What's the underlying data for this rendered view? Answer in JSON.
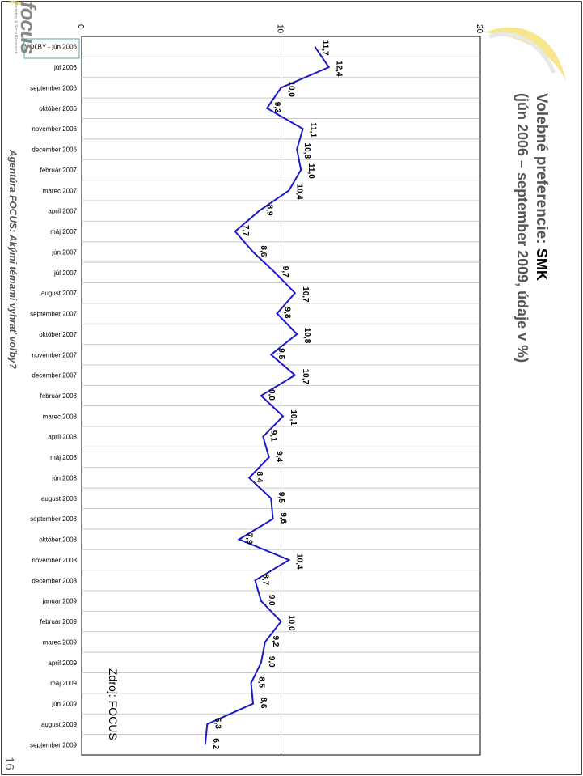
{
  "slide": {
    "title_line1_prefix": "Volebné preferencie: ",
    "title_line1_party": "SMK",
    "title_line2": "(jún 2006 – september 2009, údaje v %)",
    "side_caption": "Agentúra FOCUS: Akými témami vyhrať voľby?",
    "source": "Zdroj: FOCUS",
    "page_number": "16",
    "logo_text": "focus",
    "logo_tagline": "Marketing & Social Research"
  },
  "colors": {
    "line": "#1a1acc",
    "grid": "#c8c8c8",
    "accent_swoosh": "#f4e27a",
    "title": "#555555"
  },
  "chart_data": {
    "type": "line",
    "orientation": "rotated-vertical",
    "categories": [
      "VOĽBY - jún 2006",
      "júl 2006",
      "september 2006",
      "október 2006",
      "november 2006",
      "december 2006",
      "február 2007",
      "marec 2007",
      "apríl 2007",
      "máj 2007",
      "jún 2007",
      "júl 2007",
      "august 2007",
      "september 2007",
      "október 2007",
      "november 2007",
      "december 2007",
      "február 2008",
      "marec 2008",
      "apríl 2008",
      "máj 2008",
      "jún 2008",
      "august 2008",
      "september 2008",
      "október 2008",
      "november 2008",
      "december 2008",
      "január 2009",
      "február 2009",
      "marec 2009",
      "apríl 2009",
      "máj 2009",
      "jún 2009",
      "august 2009",
      "september 2009"
    ],
    "series": [
      {
        "values": [
          11.7,
          12.4,
          10.0,
          9.3,
          11.1,
          10.8,
          11.0,
          10.4,
          8.9,
          7.7,
          8.6,
          9.7,
          10.7,
          9.8,
          10.8,
          9.5,
          10.7,
          9.0,
          10.1,
          9.1,
          9.4,
          8.4,
          9.5,
          9.6,
          7.9,
          10.4,
          8.7,
          9.0,
          10.0,
          9.2,
          9.0,
          8.5,
          8.6,
          6.3,
          6.2
        ],
        "labels": [
          "11,7",
          "12,4",
          "10,0",
          "9,3",
          "11,1",
          "10,8",
          "11,0",
          "10,4",
          "8,9",
          "7,7",
          "8,6",
          "9,7",
          "10,7",
          "9,8",
          "10,8",
          "9,5",
          "10,7",
          "9,0",
          "10,1",
          "9,1",
          "9,4",
          "8,4",
          "9,5",
          "9,6",
          "7,9",
          "10,4",
          "8,7",
          "9,0",
          "10,0",
          "9,2",
          "9,0",
          "8,5",
          "8,6",
          "6,3",
          "6,2"
        ]
      }
    ],
    "ylim": [
      0,
      20
    ],
    "yticks": [
      "0",
      "10",
      "20"
    ],
    "grid": true
  }
}
